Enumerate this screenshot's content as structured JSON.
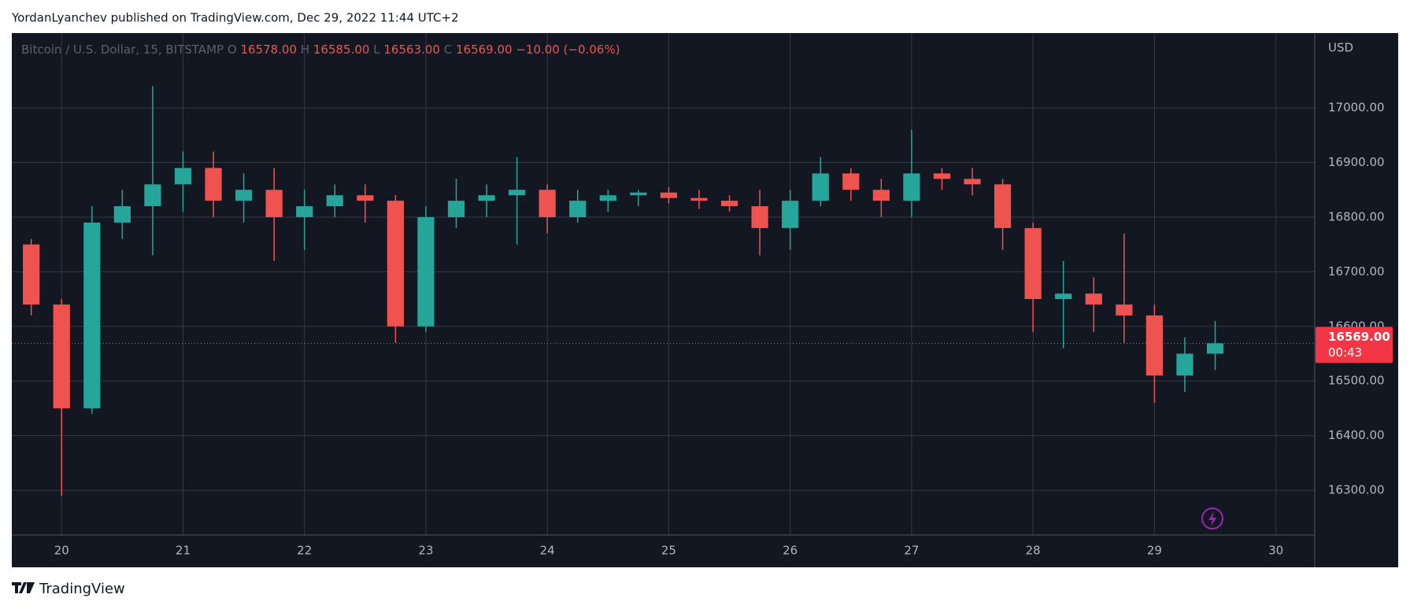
{
  "chart_data": {
    "type": "candlestick",
    "header": "YordanLyanchev published on TradingView.com, Dec 29, 2022 11:44 UTC+2",
    "title": "Bitcoin / U.S. Dollar, 15, BITSTAMP",
    "ohlc_legend": {
      "items": [
        {
          "label": "O",
          "value": "16578.00"
        },
        {
          "label": "H",
          "value": "16585.00"
        },
        {
          "label": "L",
          "value": "16563.00"
        },
        {
          "label": "C",
          "value": "16569.00"
        }
      ],
      "change": "−10.00 (−0.06%)"
    },
    "x": [
      19.625,
      19.875,
      20.125,
      20.375,
      20.625,
      20.875,
      21.125,
      21.375,
      21.625,
      21.875,
      22.125,
      22.375,
      22.625,
      22.875,
      23.125,
      23.375,
      23.625,
      23.875,
      24.125,
      24.375,
      24.625,
      24.875,
      25.125,
      25.375,
      25.625,
      25.875,
      26.125,
      26.375,
      26.625,
      26.875,
      27.125,
      27.375,
      27.625,
      27.875,
      28.125,
      28.375,
      28.625,
      28.875,
      29.125,
      29.375
    ],
    "open": [
      16750,
      16640,
      16450,
      16790,
      16820,
      16860,
      16890,
      16830,
      16850,
      16800,
      16820,
      16840,
      16830,
      16600,
      16800,
      16830,
      16840,
      16850,
      16800,
      16830,
      16840,
      16845,
      16835,
      16830,
      16820,
      16780,
      16830,
      16880,
      16850,
      16830,
      16880,
      16870,
      16860,
      16780,
      16650,
      16660,
      16640,
      16620,
      16510,
      16550
    ],
    "high": [
      16760,
      16650,
      16820,
      16850,
      17040,
      16920,
      16920,
      16880,
      16890,
      16850,
      16860,
      16860,
      16840,
      16820,
      16870,
      16860,
      16910,
      16860,
      16850,
      16850,
      16850,
      16855,
      16850,
      16840,
      16850,
      16850,
      16910,
      16890,
      16870,
      16960,
      16890,
      16890,
      16870,
      16790,
      16720,
      16690,
      16770,
      16640,
      16580,
      16610
    ],
    "low": [
      16620,
      16290,
      16440,
      16760,
      16730,
      16810,
      16800,
      16790,
      16720,
      16740,
      16800,
      16790,
      16570,
      16590,
      16780,
      16800,
      16750,
      16770,
      16790,
      16810,
      16820,
      16825,
      16815,
      16810,
      16730,
      16740,
      16820,
      16830,
      16800,
      16800,
      16850,
      16840,
      16740,
      16590,
      16560,
      16590,
      16570,
      16460,
      16480,
      16520
    ],
    "close": [
      16640,
      16450,
      16790,
      16820,
      16860,
      16890,
      16830,
      16850,
      16800,
      16820,
      16840,
      16830,
      16600,
      16800,
      16830,
      16840,
      16850,
      16800,
      16830,
      16840,
      16845,
      16835,
      16830,
      16820,
      16780,
      16830,
      16880,
      16850,
      16830,
      16880,
      16870,
      16860,
      16780,
      16650,
      16660,
      16640,
      16620,
      16510,
      16550,
      16569
    ],
    "up_color": "#26a69a",
    "down_color": "#ef5350",
    "xlim": [
      19.59,
      30.32
    ],
    "xticks": [
      20,
      21,
      22,
      23,
      24,
      25,
      26,
      27,
      28,
      29,
      30
    ],
    "ylim": [
      16218,
      17137
    ],
    "yticks": [
      {
        "value": 16300,
        "label": "16300.00"
      },
      {
        "value": 16400,
        "label": "16400.00"
      },
      {
        "value": 16500,
        "label": "16500.00"
      },
      {
        "value": 16600,
        "label": "16600.00"
      },
      {
        "value": 16700,
        "label": "16700.00"
      },
      {
        "value": 16800,
        "label": "16800.00"
      },
      {
        "value": 16900,
        "label": "16900.00"
      },
      {
        "value": 17000,
        "label": "17000.00"
      }
    ],
    "y_axis_label": "USD",
    "grid": true,
    "last_price": {
      "value": 16569,
      "label": "16569.00"
    },
    "countdown": "00:43",
    "brand": "TradingView"
  }
}
